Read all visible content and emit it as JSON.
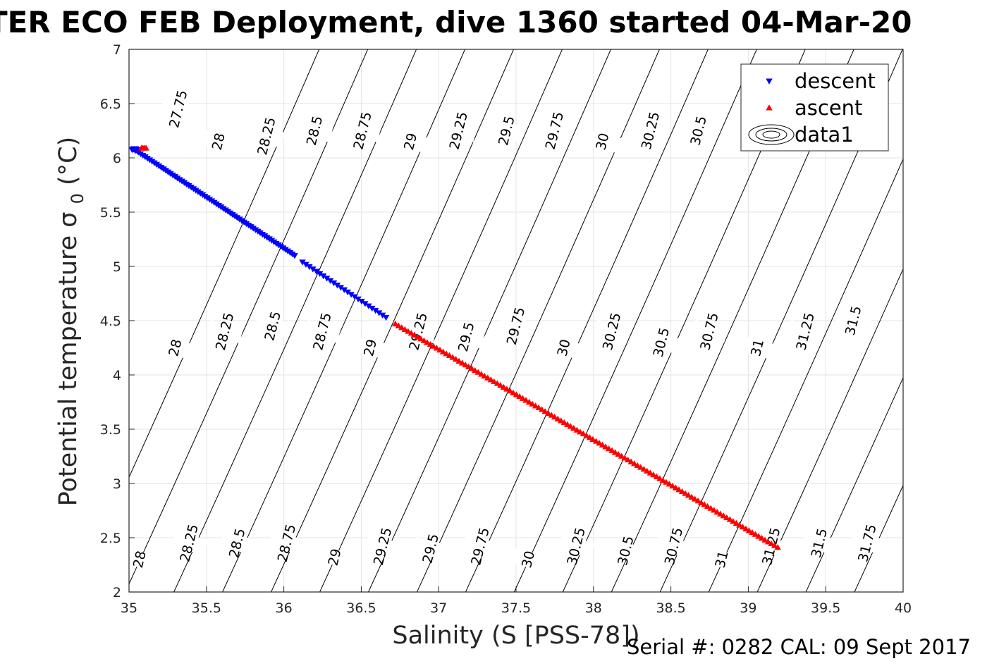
{
  "chart_data": {
    "type": "scatter",
    "title": "TER ECO FEB Deployment, dive 1360 started 04-Mar-20",
    "xlabel": "Salinity (S [PSS-78])",
    "ylabel": "Potential temperature σ",
    "ylabel_subscript": "0",
    "ylabel_units": "(°C)",
    "footer": "Serial #: 0282  CAL: 09 Sept 2017",
    "xlim": [
      35,
      40
    ],
    "ylim": [
      2,
      7
    ],
    "xticks": [
      "35",
      "35.5",
      "36",
      "36.5",
      "37",
      "37.5",
      "38",
      "38.5",
      "39",
      "39.5",
      "40"
    ],
    "yticks": [
      "2",
      "2.5",
      "3",
      "3.5",
      "4",
      "4.5",
      "5",
      "5.5",
      "6",
      "6.5",
      "7"
    ],
    "grid": true,
    "legend_position": "top-right",
    "series": [
      {
        "name": "descent",
        "marker": "triangle-down",
        "color": "#0000ff",
        "segments": [
          {
            "x_start": 35.03,
            "y_start": 6.08,
            "x_end": 36.07,
            "y_end": 5.1
          },
          {
            "x_start": 36.12,
            "y_start": 5.04,
            "x_end": 36.66,
            "y_end": 4.53
          }
        ]
      },
      {
        "name": "ascent",
        "marker": "triangle-up",
        "color": "#ff0000",
        "segments": [
          {
            "x_start": 36.72,
            "y_start": 4.47,
            "x_end": 39.19,
            "y_end": 2.41
          }
        ],
        "cluster": {
          "x": 35.08,
          "y": 6.09
        }
      },
      {
        "name": "data1",
        "marker": "contour",
        "color": "#000000"
      }
    ],
    "contours": {
      "type": "isopycnal",
      "levels": [
        "27.75",
        "28",
        "28.25",
        "28.5",
        "28.75",
        "29",
        "29.25",
        "29.5",
        "29.75",
        "30",
        "30.25",
        "30.5",
        "30.75",
        "31",
        "31.25",
        "31.5",
        "31.75"
      ],
      "label_rows": [
        {
          "labels": [
            "27.75",
            "28",
            "28.25",
            "28.5",
            "28.75",
            "29",
            "29.25",
            "29.5",
            "29.75",
            "30",
            "30.25",
            "30.5"
          ],
          "x": [
            35.32,
            35.58,
            35.89,
            36.2,
            36.51,
            36.82,
            37.13,
            37.44,
            37.75,
            38.06,
            38.37,
            38.68
          ],
          "y": [
            6.45,
            6.15,
            6.2,
            6.25,
            6.25,
            6.15,
            6.25,
            6.25,
            6.25,
            6.15,
            6.25,
            6.25
          ]
        },
        {
          "labels": [
            "28",
            "28.25",
            "28.5",
            "28.75",
            "29",
            "29.25",
            "29.5",
            "29.75",
            "30",
            "30.25",
            "30.5",
            "30.75",
            "31",
            "31.25",
            "31.5"
          ],
          "x": [
            35.3,
            35.62,
            35.93,
            36.25,
            36.56,
            36.87,
            37.18,
            37.5,
            37.81,
            38.12,
            38.44,
            38.75,
            39.06,
            39.37,
            39.68
          ],
          "y": [
            4.25,
            4.4,
            4.45,
            4.4,
            4.25,
            4.4,
            4.35,
            4.45,
            4.25,
            4.4,
            4.3,
            4.4,
            4.25,
            4.4,
            4.5
          ]
        },
        {
          "labels": [
            "28",
            "28.25",
            "28.5",
            "28.75",
            "29",
            "29.25",
            "29.5",
            "29.75",
            "30",
            "30.25",
            "30.5",
            "30.75",
            "31",
            "31.25",
            "31.5",
            "31.75"
          ],
          "x": [
            35.07,
            35.39,
            35.7,
            36.02,
            36.33,
            36.64,
            36.95,
            37.27,
            37.58,
            37.89,
            38.21,
            38.52,
            38.83,
            39.15,
            39.46,
            39.77
          ],
          "y": [
            2.3,
            2.45,
            2.45,
            2.45,
            2.32,
            2.42,
            2.4,
            2.42,
            2.3,
            2.42,
            2.38,
            2.42,
            2.3,
            2.42,
            2.45,
            2.45
          ]
        }
      ]
    }
  }
}
